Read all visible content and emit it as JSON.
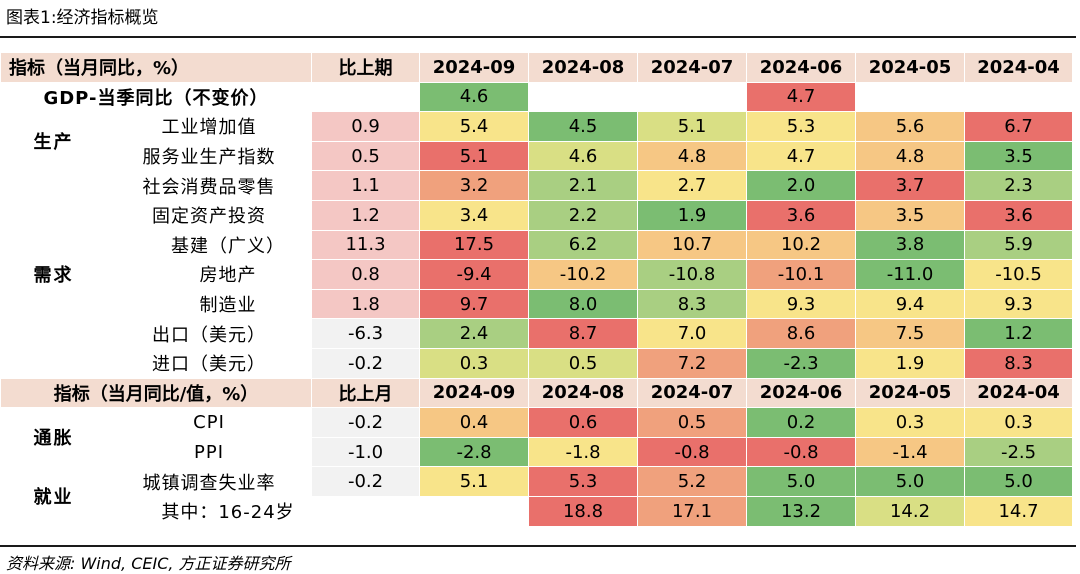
{
  "figure_title": "图表1:经济指标概览",
  "source": "资料来源: Wind, CEIC, 方正证券研究所",
  "colors": {
    "header_bg": "#f3dcd0",
    "green_dark": "#7bbd72",
    "green_mid": "#a9cf82",
    "yellow_green": "#d9df84",
    "yellow": "#f8e48a",
    "orange_light": "#f6c784",
    "orange": "#f0a17d",
    "red": "#e9706b",
    "pink_prev": "#f4c7c4",
    "gray_prev": "#f2f2f2"
  },
  "section1": {
    "header": [
      "指标（当月同比，%）",
      "比上期",
      "2024-09",
      "2024-08",
      "2024-07",
      "2024-06",
      "2024-05",
      "2024-04"
    ],
    "gdp": {
      "label": "GDP-当季同比（不变价）",
      "cells": [
        "",
        "4.6",
        "",
        "",
        "4.7",
        "",
        ""
      ]
    },
    "groups": [
      {
        "name": "生产",
        "rows": [
          {
            "label": "工业增加值",
            "cells": [
              "0.9",
              "5.4",
              "4.5",
              "5.1",
              "5.3",
              "5.6",
              "6.7"
            ]
          },
          {
            "label": "服务业生产指数",
            "cells": [
              "0.5",
              "5.1",
              "4.6",
              "4.8",
              "4.7",
              "4.8",
              "3.5"
            ]
          }
        ]
      },
      {
        "name": "需求",
        "rows": [
          {
            "label": "社会消费品零售",
            "cells": [
              "1.1",
              "3.2",
              "2.1",
              "2.7",
              "2.0",
              "3.7",
              "2.3"
            ]
          },
          {
            "label": "固定资产投资",
            "cells": [
              "1.2",
              "3.4",
              "2.2",
              "1.9",
              "3.6",
              "3.5",
              "3.6"
            ]
          },
          {
            "label": "基建（广义）",
            "cells": [
              "11.3",
              "17.5",
              "6.2",
              "10.7",
              "10.2",
              "3.8",
              "5.9"
            ]
          },
          {
            "label": "房地产",
            "cells": [
              "0.8",
              "-9.4",
              "-10.2",
              "-10.8",
              "-10.1",
              "-11.0",
              "-10.5"
            ]
          },
          {
            "label": "制造业",
            "cells": [
              "1.8",
              "9.7",
              "8.0",
              "8.3",
              "9.3",
              "9.4",
              "9.3"
            ]
          },
          {
            "label": "出口（美元）",
            "cells": [
              "-6.3",
              "2.4",
              "8.7",
              "7.0",
              "8.6",
              "7.5",
              "1.2"
            ]
          },
          {
            "label": "进口（美元）",
            "cells": [
              "-0.2",
              "0.3",
              "0.5",
              "7.2",
              "-2.3",
              "1.9",
              "8.3"
            ]
          }
        ]
      }
    ]
  },
  "section2": {
    "header": [
      "指标（当月同比/值，%）",
      "比上月",
      "2024-09",
      "2024-08",
      "2024-07",
      "2024-06",
      "2024-05",
      "2024-04"
    ],
    "groups": [
      {
        "name": "通胀",
        "rows": [
          {
            "label": "CPI",
            "cells": [
              "-0.2",
              "0.4",
              "0.6",
              "0.5",
              "0.2",
              "0.3",
              "0.3"
            ]
          },
          {
            "label": "PPI",
            "cells": [
              "-1.0",
              "-2.8",
              "-1.8",
              "-0.8",
              "-0.8",
              "-1.4",
              "-2.5"
            ]
          }
        ]
      },
      {
        "name": "就业",
        "rows": [
          {
            "label": "城镇调查失业率",
            "cells": [
              "-0.2",
              "5.1",
              "5.3",
              "5.2",
              "5.0",
              "5.0",
              "5.0"
            ]
          },
          {
            "label": "其中：16-24岁",
            "cells": [
              "",
              "",
              "18.8",
              "17.1",
              "13.2",
              "14.2",
              "14.7"
            ]
          }
        ]
      }
    ]
  }
}
